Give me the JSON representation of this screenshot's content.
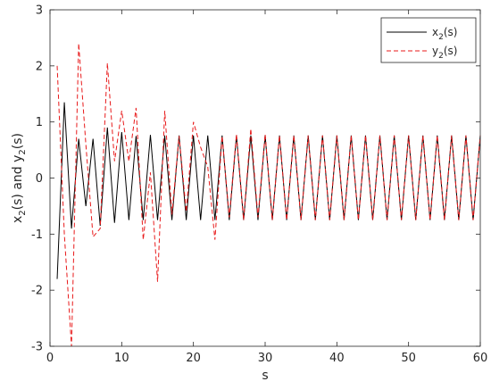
{
  "chart_data": {
    "type": "line",
    "xlabel": "s",
    "ylabel": {
      "a": "x",
      "a_sub": "2",
      "b": "(s) and y",
      "b_sub": "2",
      "c": "(s)"
    },
    "xlim": [
      0,
      60
    ],
    "ylim": [
      -3,
      3
    ],
    "xticks": [
      "0",
      "10",
      "20",
      "30",
      "40",
      "50",
      "60"
    ],
    "yticks": [
      "-3",
      "-2",
      "-1",
      "0",
      "1",
      "2",
      "3"
    ],
    "grid": false,
    "legend_position": "top-right",
    "series": [
      {
        "name": {
          "base": "x",
          "sub": "2",
          "suffix": "(s)"
        },
        "color": "#000000",
        "dash": "solid",
        "x": [
          1,
          2,
          3,
          4,
          5,
          6,
          7,
          8,
          9,
          10,
          11,
          12,
          13,
          14,
          15,
          16,
          17,
          18,
          19,
          20,
          21,
          22,
          23,
          24,
          25,
          26,
          27,
          28,
          29,
          30,
          31,
          32,
          33,
          34,
          35,
          36,
          37,
          38,
          39,
          40,
          41,
          42,
          43,
          44,
          45,
          46,
          47,
          48,
          49,
          50,
          51,
          52,
          53,
          54,
          55,
          56,
          57,
          58,
          59,
          60
        ],
        "y": [
          -1.8,
          1.35,
          -0.9,
          0.7,
          -0.5,
          0.7,
          -0.85,
          0.9,
          -0.8,
          0.82,
          -0.75,
          0.75,
          -0.75,
          0.77,
          -0.75,
          0.76,
          -0.75,
          0.76,
          -0.75,
          0.76,
          -0.75,
          0.76,
          -0.75,
          0.76,
          -0.75,
          0.76,
          -0.75,
          0.76,
          -0.75,
          0.76,
          -0.75,
          0.76,
          -0.75,
          0.76,
          -0.75,
          0.76,
          -0.75,
          0.76,
          -0.75,
          0.76,
          -0.75,
          0.76,
          -0.75,
          0.76,
          -0.75,
          0.76,
          -0.75,
          0.76,
          -0.75,
          0.76,
          -0.75,
          0.76,
          -0.75,
          0.76,
          -0.75,
          0.76,
          -0.75,
          0.76,
          -0.75,
          0.76
        ]
      },
      {
        "name": {
          "base": "y",
          "sub": "2",
          "suffix": "(s)"
        },
        "color": "#e8191a",
        "dash": "dashed",
        "x": [
          1,
          2,
          3,
          4,
          5,
          6,
          7,
          8,
          9,
          10,
          11,
          12,
          13,
          14,
          15,
          16,
          17,
          18,
          19,
          20,
          21,
          22,
          23,
          24,
          25,
          26,
          27,
          28,
          29,
          30,
          31,
          32,
          33,
          34,
          35,
          36,
          37,
          38,
          39,
          40,
          41,
          42,
          43,
          44,
          45,
          46,
          47,
          48,
          49,
          50,
          51,
          52,
          53,
          54,
          55,
          56,
          57,
          58,
          59,
          60
        ],
        "y": [
          2.0,
          -1.0,
          -3.0,
          2.4,
          0.6,
          -1.05,
          -0.9,
          2.05,
          0.3,
          1.2,
          0.3,
          1.25,
          -1.1,
          0.1,
          -1.85,
          1.2,
          -0.65,
          0.75,
          -0.6,
          1.0,
          0.55,
          0.2,
          -1.1,
          0.75,
          -0.7,
          0.78,
          -0.75,
          0.88,
          -0.7,
          0.78,
          -0.75,
          0.76,
          -0.75,
          0.76,
          -0.75,
          0.76,
          -0.75,
          0.76,
          -0.75,
          0.76,
          -0.75,
          0.76,
          -0.75,
          0.76,
          -0.75,
          0.76,
          -0.75,
          0.76,
          -0.75,
          0.76,
          -0.75,
          0.76,
          -0.75,
          0.76,
          -0.75,
          0.76,
          -0.75,
          0.76,
          -0.75,
          0.76
        ]
      }
    ]
  }
}
